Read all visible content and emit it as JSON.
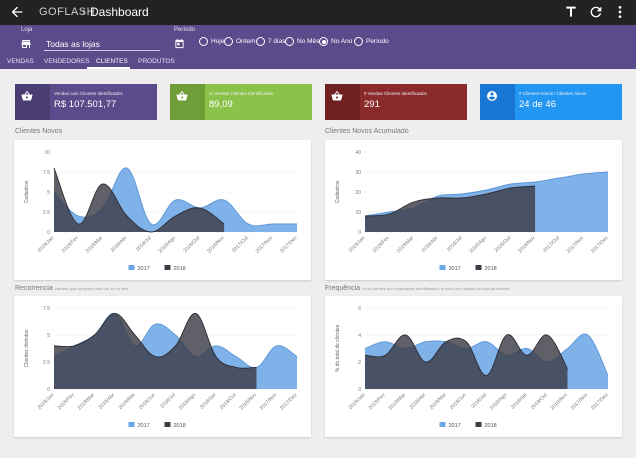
{
  "app": {
    "brand": "GOFLASH",
    "separator": "›",
    "title": "Dashboard"
  },
  "topbar_icons": [
    "back-arrow-icon",
    "font-icon",
    "refresh-icon",
    "more-vert-icon"
  ],
  "filters": {
    "store_label": "Loja",
    "store_value": "Todas as lojas",
    "period_label": "Período",
    "period_options": [
      "Hoje",
      "Ontem",
      "7 dias",
      "No Mês",
      "No Ano",
      "Período"
    ],
    "selected_period": "No Ano"
  },
  "tabs": [
    "VENDAS",
    "VENDEDORES",
    "CLIENTES",
    "PRODUTOS"
  ],
  "active_tab": "CLIENTES",
  "kpis": [
    {
      "label": "Vendas com Clientes Identificados",
      "value": "R$ 107.501,77",
      "color": "#5b4b8a",
      "dark": "#4a3d72",
      "icon": "basket-icon"
    },
    {
      "label": "% Vendas Clientes Identificados",
      "value": "89,09",
      "color": "#8bc34a",
      "dark": "#6f9e38",
      "icon": "basket-icon"
    },
    {
      "label": "# Vendas Clientes Identificados",
      "value": "291",
      "color": "#8b2a2a",
      "dark": "#6f2020",
      "icon": "basket-icon"
    },
    {
      "label": "# Clientes Novos / Clientes Ativos",
      "value": "24 de 46",
      "color": "#2196f3",
      "dark": "#1976d2",
      "icon": "account-circle-icon"
    }
  ],
  "colors": {
    "series_2017": "#6aa5e6",
    "series_2018": "#3d3d47"
  },
  "chart_data": [
    {
      "type": "area",
      "title": "Clientes Novos",
      "ylabel": "Cadastros",
      "ylim": [
        0,
        10
      ],
      "yticks": [
        0,
        2.5,
        5,
        7.5,
        10
      ],
      "categories": [
        "2018/Jan",
        "2018/Fev",
        "2018/Mar",
        "2018/Abr",
        "2018/Jul",
        "2018/Ago",
        "2018/Out",
        "2018/Nov",
        "2017/Out",
        "2017/Nov",
        "2017/Dez"
      ],
      "series": [
        {
          "name": "2017",
          "values": [
            5,
            2,
            3,
            8,
            1,
            4,
            3,
            4,
            1,
            1,
            1
          ]
        },
        {
          "name": "2018",
          "values": [
            8,
            1,
            6,
            2,
            0,
            2,
            3,
            1,
            null,
            null,
            null
          ]
        }
      ],
      "legend": "bottom"
    },
    {
      "type": "area",
      "title": "Clientes Novos Acumulado",
      "ylabel": "Cadastros",
      "ylim": [
        0,
        40
      ],
      "yticks": [
        0,
        10,
        20,
        30,
        40
      ],
      "categories": [
        "2018/Jan",
        "2018/Fev",
        "2018/Mar",
        "2018/Abr",
        "2018/Jul",
        "2018/Ago",
        "2018/Out",
        "2018/Nov",
        "2017/Out",
        "2017/Nov",
        "2017/Dez"
      ],
      "series": [
        {
          "name": "2017",
          "values": [
            8,
            10,
            12,
            18,
            19,
            21,
            24,
            25,
            27,
            29,
            30
          ]
        },
        {
          "name": "2018",
          "values": [
            8,
            9,
            15,
            17,
            17,
            19,
            22,
            23,
            null,
            null,
            null
          ]
        }
      ],
      "legend": "bottom"
    },
    {
      "type": "area",
      "title": "Recorrencia",
      "subtitle": "clientes que compram mais de 1x no mês",
      "ylabel": "Clientes distintos",
      "ylim": [
        0,
        7.5
      ],
      "yticks": [
        0,
        2.5,
        5,
        7.5
      ],
      "categories": [
        "2018/Jan",
        "2018/Fev",
        "2018/Mar",
        "2018/Abr",
        "2018/Mai",
        "2018/Jun",
        "2018/Jul",
        "2018/Ago",
        "2018/Set",
        "2018/Out",
        "2018/Nov",
        "2017/Nov",
        "2017/Dez"
      ],
      "series": [
        {
          "name": "2017",
          "values": [
            3,
            4,
            5,
            7,
            4,
            6,
            5,
            3,
            4,
            3,
            2,
            4,
            3
          ]
        },
        {
          "name": "2018",
          "values": [
            4,
            4,
            5,
            7,
            5,
            3,
            4,
            7,
            3,
            2,
            2,
            null,
            null
          ]
        }
      ],
      "legend": "bottom"
    },
    {
      "type": "area",
      "title": "Frequência",
      "subtitle": "% de clientes que compraram identificados no mês com relação ao total da carteira",
      "ylabel": "% do total de clientes",
      "ylim": [
        0,
        6
      ],
      "yticks": [
        0,
        2,
        4,
        6
      ],
      "categories": [
        "2018/Jan",
        "2018/Fev",
        "2018/Mar",
        "2018/Abr",
        "2018/Mai",
        "2018/Jun",
        "2018/Jul",
        "2018/Ago",
        "2018/Set",
        "2018/Out",
        "2018/Nov",
        "2017/Nov",
        "2017/Dez"
      ],
      "series": [
        {
          "name": "2017",
          "values": [
            3,
            3.5,
            3,
            3.5,
            3.5,
            3,
            3.5,
            2.5,
            3,
            2,
            3,
            4,
            1
          ]
        },
        {
          "name": "2018",
          "values": [
            2.5,
            2.5,
            4,
            2,
            3.5,
            3.5,
            1,
            4,
            2.5,
            4,
            1.5,
            null,
            null
          ]
        }
      ],
      "legend": "bottom"
    }
  ]
}
